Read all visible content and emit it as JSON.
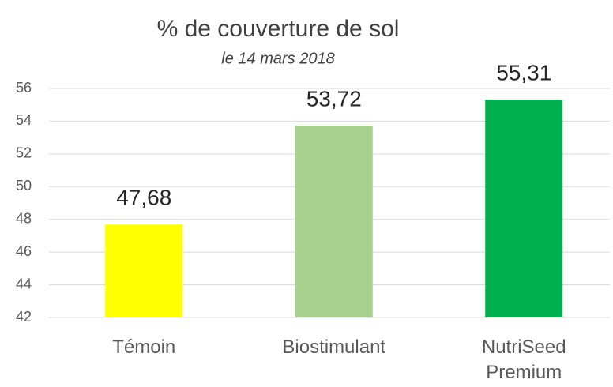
{
  "chart_data": {
    "type": "bar",
    "title": "% de couverture de sol",
    "subtitle": "le 14 mars 2018",
    "categories": [
      "Témoin",
      "Biostimulant",
      "NutriSeed Premium"
    ],
    "values": [
      47.68,
      53.72,
      55.31
    ],
    "value_labels": [
      "47,68",
      "53,72",
      "55,31"
    ],
    "colors": [
      "#ffff00",
      "#a9d18e",
      "#00b050"
    ],
    "ylim": [
      42,
      56
    ],
    "yticks": [
      42,
      44,
      46,
      48,
      50,
      52,
      54,
      56
    ],
    "grid": true
  }
}
